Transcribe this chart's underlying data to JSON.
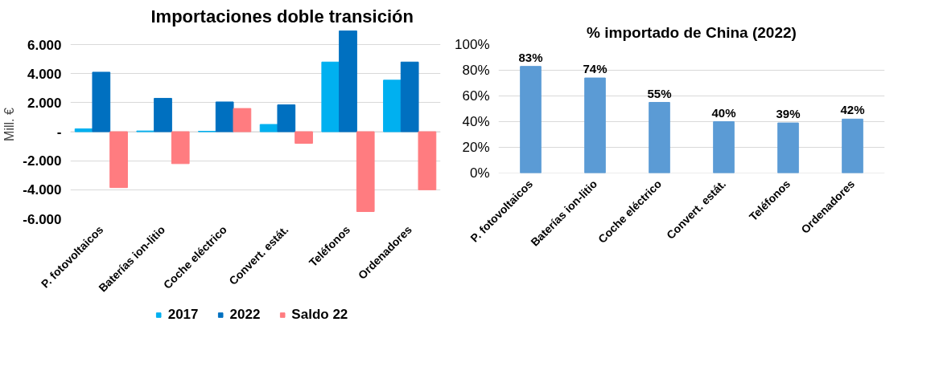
{
  "chart_data": [
    {
      "type": "bar",
      "title": "Importaciones doble transición",
      "ylabel": "Mill. €",
      "categories": [
        "P. fotovoltaicos",
        "Baterías ion-litio",
        "Coche eléctrico",
        "Convert. estát.",
        "Teléfonos",
        "Ordenadores"
      ],
      "series": [
        {
          "name": "2017",
          "color": "#00b0f0",
          "values": [
            200,
            50,
            30,
            500,
            4800,
            3550
          ]
        },
        {
          "name": "2022",
          "color": "#0070c0",
          "values": [
            4100,
            2300,
            2050,
            1850,
            6950,
            4800
          ]
        },
        {
          "name": "Saldo 22",
          "color": "#ff7c80",
          "values": [
            -3850,
            -2200,
            1600,
            -800,
            -5500,
            -4000
          ]
        }
      ],
      "ylim": [
        -6000,
        7000
      ],
      "yticks": [
        {
          "value": -6000,
          "label": "-6.000"
        },
        {
          "value": -4000,
          "label": "-4.000"
        },
        {
          "value": -2000,
          "label": "-2.000"
        },
        {
          "value": 0,
          "label": "-"
        },
        {
          "value": 2000,
          "label": "2.000"
        },
        {
          "value": 4000,
          "label": "4.000"
        },
        {
          "value": 6000,
          "label": "6.000"
        }
      ],
      "grid": "y",
      "legend": "bottom"
    },
    {
      "type": "bar",
      "title": "% importado de China (2022)",
      "categories": [
        "P. fotovoltaicos",
        "Baterías ion-litio",
        "Coche eléctrico",
        "Convert. estát.",
        "Teléfonos",
        "Ordenadores"
      ],
      "series": [
        {
          "color": "#5b9bd5",
          "values": [
            83,
            74,
            55,
            40,
            39,
            42
          ]
        }
      ],
      "value_labels": [
        "83%",
        "74%",
        "55%",
        "40%",
        "39%",
        "42%"
      ],
      "ylim": [
        0,
        100
      ],
      "yticks": [
        {
          "value": 0,
          "label": "0%"
        },
        {
          "value": 20,
          "label": "20%"
        },
        {
          "value": 40,
          "label": "40%"
        },
        {
          "value": 60,
          "label": "60%"
        },
        {
          "value": 80,
          "label": "80%"
        },
        {
          "value": 100,
          "label": "100%"
        }
      ],
      "grid": "y"
    }
  ]
}
